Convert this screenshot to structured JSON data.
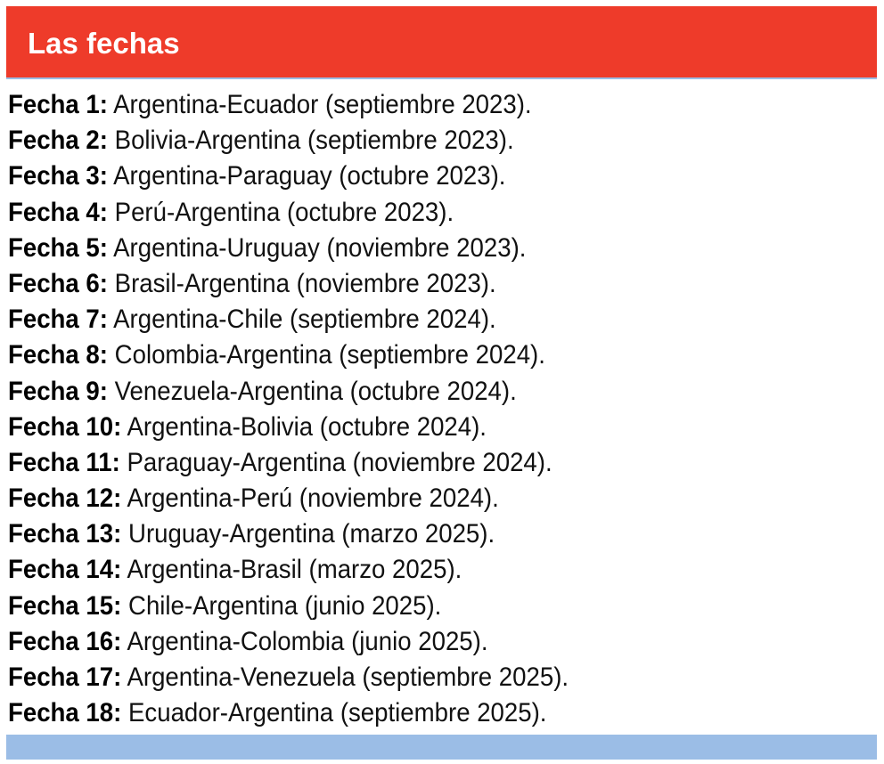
{
  "header": {
    "title": "Las fechas",
    "background_color": "#ee3b2a"
  },
  "fixtures": [
    {
      "label": "Fecha 1:",
      "text": "Argentina-Ecuador (septiembre 2023)."
    },
    {
      "label": "Fecha 2:",
      "text": "Bolivia-Argentina (septiembre 2023)."
    },
    {
      "label": "Fecha 3:",
      "text": "Argentina-Paraguay (octubre 2023)."
    },
    {
      "label": "Fecha 4:",
      "text": "Perú-Argentina (octubre 2023)."
    },
    {
      "label": "Fecha 5:",
      "text": "Argentina-Uruguay (noviembre 2023)."
    },
    {
      "label": "Fecha 6:",
      "text": "Brasil-Argentina (noviembre 2023)."
    },
    {
      "label": "Fecha 7:",
      "text": "Argentina-Chile (septiembre 2024)."
    },
    {
      "label": "Fecha 8:",
      "text": "Colombia-Argentina (septiembre 2024)."
    },
    {
      "label": "Fecha 9:",
      "text": "Venezuela-Argentina (octubre 2024)."
    },
    {
      "label": "Fecha 10:",
      "text": "Argentina-Bolivia (octubre 2024)."
    },
    {
      "label": "Fecha 11:",
      "text": "Paraguay-Argentina (noviembre 2024)."
    },
    {
      "label": "Fecha 12:",
      "text": "Argentina-Perú (noviembre 2024)."
    },
    {
      "label": "Fecha 13:",
      "text": "Uruguay-Argentina (marzo 2025)."
    },
    {
      "label": "Fecha 14:",
      "text": "Argentina-Brasil (marzo 2025)."
    },
    {
      "label": "Fecha 15:",
      "text": "Chile-Argentina (junio 2025)."
    },
    {
      "label": "Fecha 16:",
      "text": "Argentina-Colombia (junio 2025)."
    },
    {
      "label": "Fecha 17:",
      "text": "Argentina-Venezuela (septiembre 2025)."
    },
    {
      "label": "Fecha 18:",
      "text": "Ecuador-Argentina (septiembre 2025)."
    }
  ],
  "footer": {
    "bar_color": "#9bbde6"
  }
}
